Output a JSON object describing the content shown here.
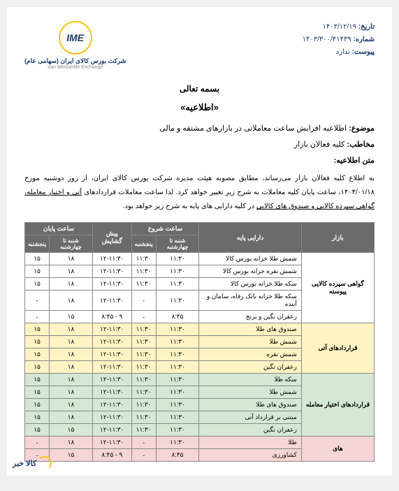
{
  "meta": {
    "date_label": "تاریخ:",
    "date_value": "۱۴۰۳/۱۲/۱۹",
    "number_label": "شماره:",
    "number_value": "۱۴۰۳/۳۰۰/۴۱۴۳۹",
    "attach_label": "پیوست:",
    "attach_value": "ندارد"
  },
  "logo": {
    "abbr": "IME",
    "fa": "شرکت بورس کالای ایران (سهامی عام)",
    "en": "Iran Mercantile Exchange"
  },
  "titles": {
    "basmala": "بسمه تعالی",
    "notice": "«اطلاعیه»"
  },
  "subject": {
    "label": "موضوع:",
    "value": "اطلاعیه افزایش ساعت معاملاتی در بازارهای مشتقه و مالی"
  },
  "addressee": {
    "label": "مخاطب:",
    "value": "کلیه فعالان بازار"
  },
  "body_label": "متن اطلاعیه:",
  "body": {
    "p1": "به اطلاع کلیه فعالان بازار می‌رساند، مطابق مصوبه هیئت مدیره شرکت بورس کالای ایران، از روز دوشنبه مورخ ۱۴۰۴/۰۱/۱۸، ساعت پایان کلیه معاملات به شرح زیر تغییر خواهد کرد. لذا ساعت معاملات قراردادهای ",
    "u1": "آتی و اختیار معامله، گواهی سپرده کالایی و صندوق های کالایی",
    "p2": " در کلیه دارایی های پایه به شرح زیر خواهد بود."
  },
  "table": {
    "headers": {
      "market": "بازار",
      "asset": "دارایی پایه",
      "start": "ساعت شروع",
      "end": "ساعت پایان",
      "sat_wed": "شنبه تا چهارشنبه",
      "thu": "پنجشنبه",
      "preopen": "پیش گشایش"
    },
    "groups": [
      {
        "market": "گواهی سپرده کالایی پیوسته",
        "bg": "bg-white",
        "rows": [
          {
            "asset": "شمش طلا خزانه بورس کالا",
            "s1": "۱۱:۳۰",
            "s2": "۱۱:۳۰",
            "pre": "۱۲-۱۱:۳۰",
            "e1": "۱۸",
            "e2": "۱۵"
          },
          {
            "asset": "شمش نقره خزانه بورس کالا",
            "s1": "۱۱:۳۰",
            "s2": "۱۱:۳۰",
            "pre": "۱۲-۱۱:۳۰",
            "e1": "۱۸",
            "e2": "۱۵"
          },
          {
            "asset": "سکه طلا خزانه بورس کالا",
            "s1": "۱۱:۳۰",
            "s2": "۱۱:۳۰",
            "pre": "۱۲-۱۱:۳۰",
            "e1": "۱۸",
            "e2": "۱۵"
          },
          {
            "asset": "سکه طلا خزانه بانک رفاه، سامان و آینده",
            "s1": "۱۱:۳۰",
            "s2": "-",
            "pre": "۱۲-۱۱:۳۰",
            "e1": "۱۸",
            "e2": "-"
          },
          {
            "asset": "زعفران نگین و برنج",
            "s1": "۸:۴۵",
            "s2": "-",
            "pre": "۹ - ۸:۴۵",
            "e1": "۱۵",
            "e2": "-"
          }
        ]
      },
      {
        "market": "قراردادهای آتی",
        "bg": "bg-yellow",
        "rows": [
          {
            "asset": "صندوق های طلا",
            "s1": "۱۱:۳۰",
            "s2": "۱۱:۳۰",
            "pre": "۱۲-۱۱:۳۰",
            "e1": "۱۸",
            "e2": "۱۵"
          },
          {
            "asset": "شمش طلا",
            "s1": "۱۱:۳۰",
            "s2": "۱۱:۳۰",
            "pre": "۱۲-۱۱:۳۰",
            "e1": "۱۸",
            "e2": "۱۵"
          },
          {
            "asset": "شمش نقره",
            "s1": "۱۱:۳۰",
            "s2": "۱۱:۳۰",
            "pre": "۱۲-۱۱:۳۰",
            "e1": "۱۸",
            "e2": "۱۵"
          },
          {
            "asset": "زعفران نگین",
            "s1": "۱۱:۳۰",
            "s2": "۱۱:۳۰",
            "pre": "۱۲-۱۱:۳۰",
            "e1": "۱۸",
            "e2": "۱۵"
          }
        ]
      },
      {
        "market": "قراردادهای اختیار معامله",
        "bg": "bg-green",
        "rows": [
          {
            "asset": "سکه طلا",
            "s1": "۱۱:۳۰",
            "s2": "۱۱:۳۰",
            "pre": "۱۲-۱۱:۳۰",
            "e1": "۱۸",
            "e2": "۱۵"
          },
          {
            "asset": "شمش طلا",
            "s1": "۱۱:۳۰",
            "s2": "۱۱:۳۰",
            "pre": "۱۲-۱۱:۳۰",
            "e1": "۱۸",
            "e2": "۱۵"
          },
          {
            "asset": "صندوق های طلا",
            "s1": "۱۱:۳۰",
            "s2": "۱۱:۳۰",
            "pre": "۱۲-۱۱:۳۰",
            "e1": "۱۸",
            "e2": "۱۵"
          },
          {
            "asset": "مبتنی بر قرارداد آتی",
            "s1": "۱۱:۳۰",
            "s2": "۱۱:۳۰",
            "pre": "۱۲-۱۱:۳۰",
            "e1": "۱۸",
            "e2": "۱۵"
          },
          {
            "asset": "زعفران نگین",
            "s1": "۱۱:۳۰",
            "s2": "۱۱:۳۰",
            "pre": "۱۲-۱۱:۳۰",
            "e1": "۱۵",
            "e2": "۱۵"
          }
        ]
      },
      {
        "market": "های",
        "bg": "bg-pink",
        "rows": [
          {
            "asset": "طلا",
            "s1": "۱۱:۳۰",
            "s2": "-",
            "pre": "۱۲-۱۱:۳۰",
            "e1": "۱۸",
            "e2": "-"
          },
          {
            "asset": "کشاورزی",
            "s1": "۸:۴۵",
            "s2": "-",
            "pre": "۹ - ۸:۴۵",
            "e1": "۱۵",
            "e2": "-"
          }
        ]
      }
    ]
  },
  "watermark": "کالا خبر"
}
